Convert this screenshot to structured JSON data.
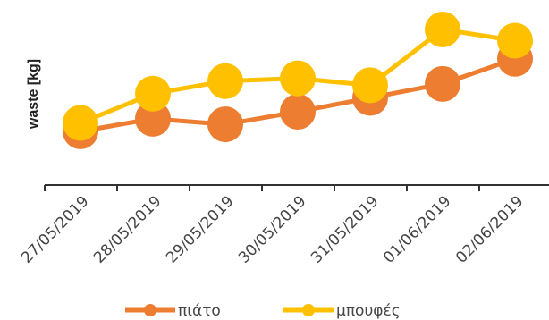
{
  "chart_data": {
    "type": "line",
    "title": "",
    "xlabel": "",
    "ylabel": "waste [kg]",
    "categories": [
      "27/05/2019",
      "28/05/2019",
      "29/05/2019",
      "30/05/2019",
      "31/05/2019",
      "01/06/2019",
      "02/06/2019"
    ],
    "ylim": [
      0,
      10
    ],
    "show_y_ticks": false,
    "grid": false,
    "legend_position": "bottom",
    "series": [
      {
        "name": "πιάτο",
        "color": "#ED7D31",
        "values": [
          2.7,
          3.6,
          3.2,
          4.1,
          5.1,
          6.1,
          7.9
        ]
      },
      {
        "name": "μπουφές",
        "color": "#FFC000",
        "values": [
          3.3,
          5.4,
          6.3,
          6.5,
          6.0,
          10.0,
          9.2
        ]
      }
    ]
  }
}
